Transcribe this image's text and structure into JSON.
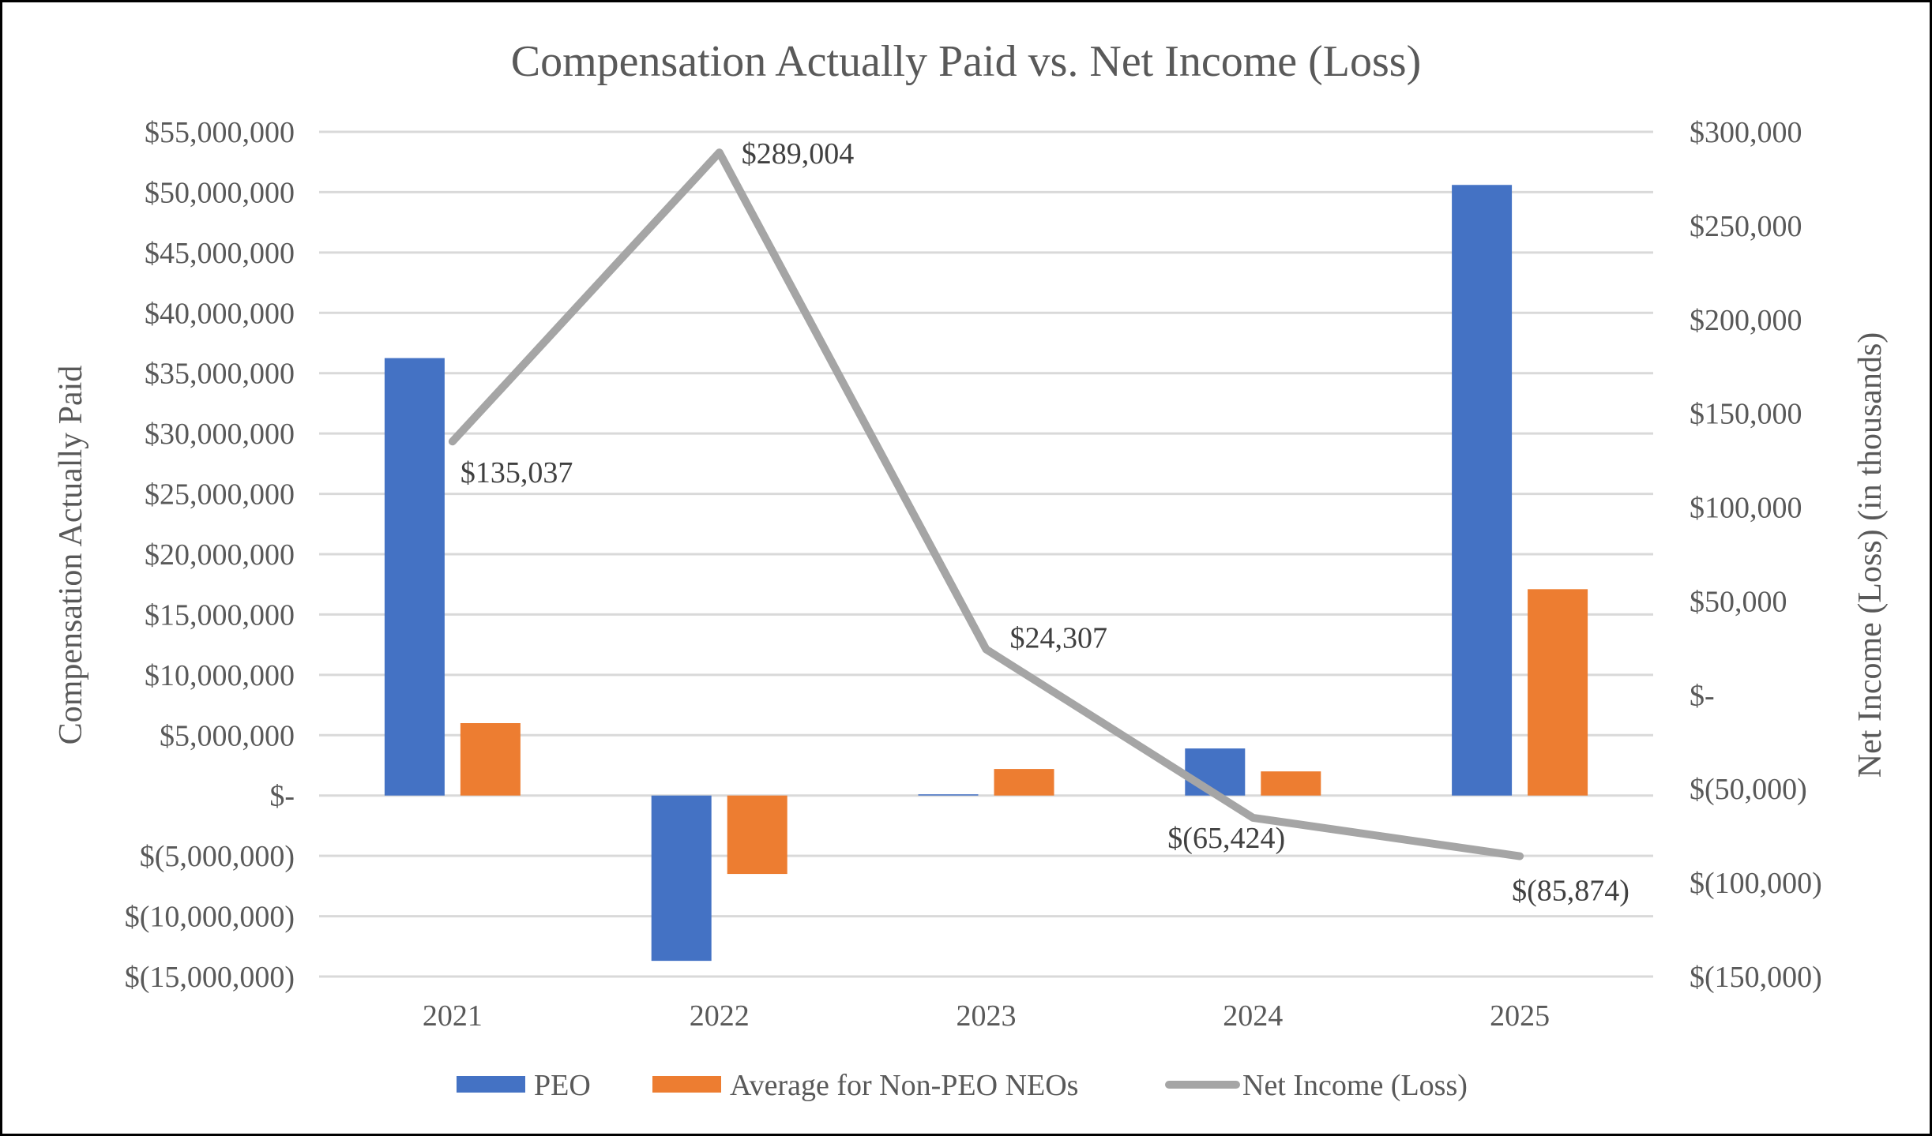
{
  "chart_data": {
    "type": "bar",
    "title": "Compensation Actually Paid vs. Net Income (Loss)",
    "categories": [
      "2021",
      "2022",
      "2023",
      "2024",
      "2025"
    ],
    "xlabel": "",
    "ylabel": "Compensation Actually Paid",
    "y2label": "Net Income (Loss) (in thousands)",
    "ylim": [
      -15000000,
      55000000
    ],
    "y2lim": [
      -150000,
      300000
    ],
    "grid": true,
    "legend_position": "bottom",
    "y_ticks": [
      {
        "value": 55000000,
        "label": "$55,000,000"
      },
      {
        "value": 50000000,
        "label": "$50,000,000"
      },
      {
        "value": 45000000,
        "label": "$45,000,000"
      },
      {
        "value": 40000000,
        "label": "$40,000,000"
      },
      {
        "value": 35000000,
        "label": "$35,000,000"
      },
      {
        "value": 30000000,
        "label": "$30,000,000"
      },
      {
        "value": 25000000,
        "label": "$25,000,000"
      },
      {
        "value": 20000000,
        "label": "$20,000,000"
      },
      {
        "value": 15000000,
        "label": "$15,000,000"
      },
      {
        "value": 10000000,
        "label": "$10,000,000"
      },
      {
        "value": 5000000,
        "label": "$5,000,000"
      },
      {
        "value": 0,
        "label": "$-"
      },
      {
        "value": -5000000,
        "label": "$(5,000,000)"
      },
      {
        "value": -10000000,
        "label": "$(10,000,000)"
      },
      {
        "value": -15000000,
        "label": "$(15,000,000)"
      }
    ],
    "y2_ticks": [
      {
        "value": 300000,
        "label": "$300,000"
      },
      {
        "value": 250000,
        "label": "$250,000"
      },
      {
        "value": 200000,
        "label": "$200,000"
      },
      {
        "value": 150000,
        "label": "$150,000"
      },
      {
        "value": 100000,
        "label": "$100,000"
      },
      {
        "value": 50000,
        "label": "$50,000"
      },
      {
        "value": 0,
        "label": "$-"
      },
      {
        "value": -50000,
        "label": "$(50,000)"
      },
      {
        "value": -100000,
        "label": "$(100,000)"
      },
      {
        "value": -150000,
        "label": "$(150,000)"
      }
    ],
    "series": [
      {
        "name": "PEO",
        "type": "bar",
        "axis": "left",
        "color": "#4472C4",
        "values": [
          36250000,
          -13700000,
          100000,
          3900000,
          50600000
        ]
      },
      {
        "name": "Average for Non-PEO NEOs",
        "type": "bar",
        "axis": "left",
        "color": "#ED7D31",
        "values": [
          6000000,
          -6500000,
          2200000,
          2000000,
          17100000
        ]
      },
      {
        "name": "Net Income (Loss)",
        "type": "line",
        "axis": "right",
        "color": "#A5A5A5",
        "values": [
          135037,
          289004,
          24307,
          -65424,
          -85874
        ],
        "data_labels": [
          "$135,037",
          "$289,004",
          "$24,307",
          "$(65,424)",
          "$(85,874)"
        ]
      }
    ]
  }
}
